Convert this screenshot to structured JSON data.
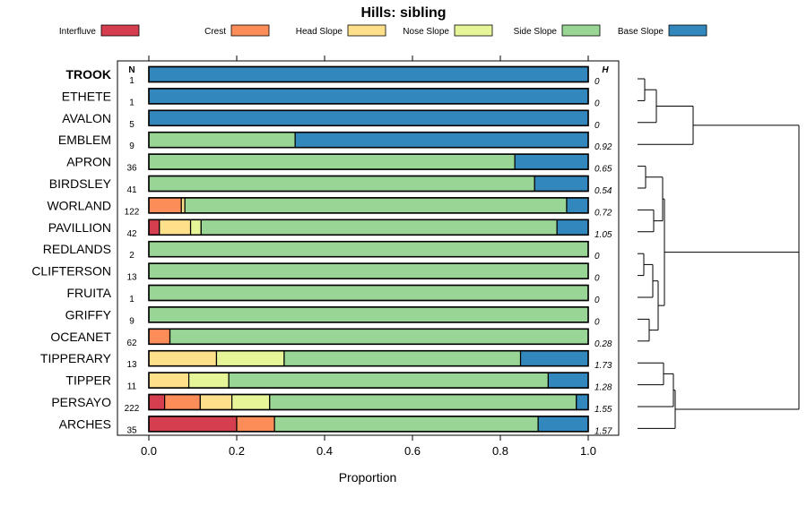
{
  "chart_data": {
    "type": "stacked-bar-horizontal",
    "title": "Hills: sibling",
    "xlabel": "Proportion",
    "ylabel": "",
    "xlim": [
      0,
      1
    ],
    "x_ticks": [
      "0.0",
      "0.2",
      "0.4",
      "0.6",
      "0.8",
      "1.0"
    ],
    "n_header": "N",
    "h_header": "H",
    "highlighted_category": "TROOK",
    "legend": [
      {
        "name": "Interfluve",
        "color": "#d53e4f"
      },
      {
        "name": "Crest",
        "color": "#fc8d59"
      },
      {
        "name": "Head Slope",
        "color": "#fee08b"
      },
      {
        "name": "Nose Slope",
        "color": "#e6f598"
      },
      {
        "name": "Side Slope",
        "color": "#99d594"
      },
      {
        "name": "Base Slope",
        "color": "#3288bd"
      }
    ],
    "rows": [
      {
        "name": "TROOK",
        "n": "1",
        "h": "0",
        "values": [
          0,
          0,
          0,
          0,
          0,
          1
        ]
      },
      {
        "name": "ETHETE",
        "n": "1",
        "h": "0",
        "values": [
          0,
          0,
          0,
          0,
          0,
          1
        ]
      },
      {
        "name": "AVALON",
        "n": "5",
        "h": "0",
        "values": [
          0,
          0,
          0,
          0,
          0,
          1
        ]
      },
      {
        "name": "EMBLEM",
        "n": "9",
        "h": "0.92",
        "values": [
          0,
          0,
          0,
          0,
          0.333,
          0.667
        ]
      },
      {
        "name": "APRON",
        "n": "36",
        "h": "0.65",
        "values": [
          0,
          0,
          0,
          0,
          0.833,
          0.167
        ]
      },
      {
        "name": "BIRDSLEY",
        "n": "41",
        "h": "0.54",
        "values": [
          0,
          0,
          0,
          0,
          0.878,
          0.122
        ]
      },
      {
        "name": "WORLAND",
        "n": "122",
        "h": "0.72",
        "values": [
          0,
          0.074,
          0.008,
          0,
          0.869,
          0.049
        ]
      },
      {
        "name": "PAVILLION",
        "n": "42",
        "h": "1.05",
        "values": [
          0.024,
          0,
          0.071,
          0.024,
          0.81,
          0.071
        ]
      },
      {
        "name": "REDLANDS",
        "n": "2",
        "h": "0",
        "values": [
          0,
          0,
          0,
          0,
          1,
          0
        ]
      },
      {
        "name": "CLIFTERSON",
        "n": "13",
        "h": "0",
        "values": [
          0,
          0,
          0,
          0,
          1,
          0
        ]
      },
      {
        "name": "FRUITA",
        "n": "1",
        "h": "0",
        "values": [
          0,
          0,
          0,
          0,
          1,
          0
        ]
      },
      {
        "name": "GRIFFY",
        "n": "9",
        "h": "0",
        "values": [
          0,
          0,
          0,
          0,
          1,
          0
        ]
      },
      {
        "name": "OCEANET",
        "n": "62",
        "h": "0.28",
        "values": [
          0,
          0.048,
          0,
          0,
          0.952,
          0
        ]
      },
      {
        "name": "TIPPERARY",
        "n": "13",
        "h": "1.73",
        "values": [
          0,
          0,
          0.154,
          0.154,
          0.538,
          0.154
        ]
      },
      {
        "name": "TIPPER",
        "n": "11",
        "h": "1.28",
        "values": [
          0,
          0,
          0.091,
          0.091,
          0.727,
          0.091
        ]
      },
      {
        "name": "PERSAYO",
        "n": "222",
        "h": "1.55",
        "values": [
          0.036,
          0.081,
          0.072,
          0.086,
          0.698,
          0.027
        ]
      },
      {
        "name": "ARCHES",
        "n": "35",
        "h": "1.57",
        "values": [
          0.2,
          0.086,
          0,
          0,
          0.6,
          0.114
        ]
      }
    ]
  }
}
